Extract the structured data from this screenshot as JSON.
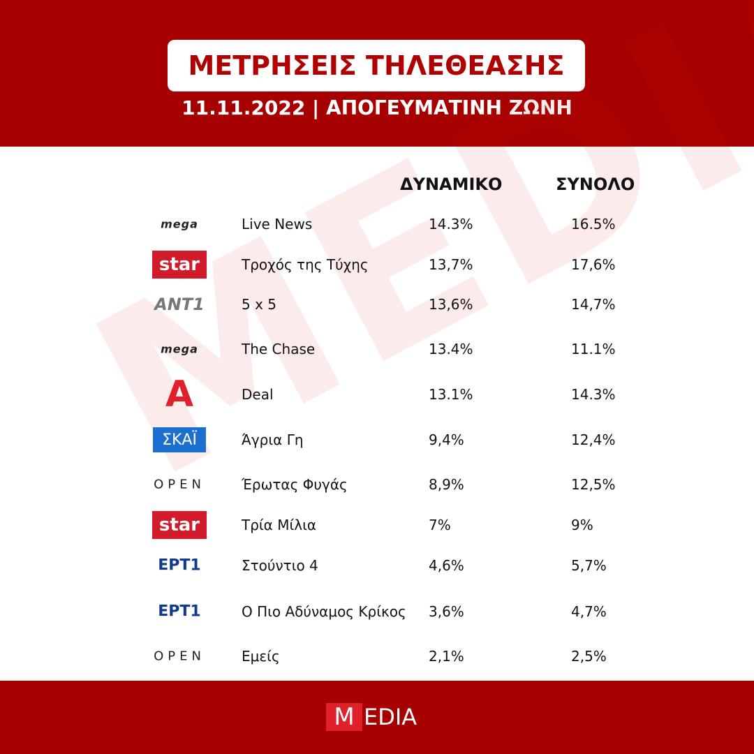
{
  "header": {
    "title": "ΜΕΤΡΗΣΕΙΣ ΤΗΛΕΘΕΑΣΗΣ",
    "subtitle": "11.11.2022 | ΑΠΟΓΕΥΜΑΤΙΝΗ ΖΩΝΗ"
  },
  "watermark": "MEDIA",
  "table": {
    "columns": [
      "ΔΥΝΑΜΙΚΟ",
      "ΣΥΝΟΛΟ"
    ],
    "rows": [
      {
        "logo": "mega",
        "show": "Live News",
        "dynamic": "14.3%",
        "total": "16.5%"
      },
      {
        "logo": "star",
        "show": "Τροχός της Τύχης",
        "dynamic": "13,7%",
        "total": "17,6%"
      },
      {
        "logo": "ANT1",
        "show": "5 x 5",
        "dynamic": "13,6%",
        "total": "14,7%"
      },
      {
        "logo": "mega",
        "show": "The Chase",
        "dynamic": "13.4%",
        "total": "11.1%"
      },
      {
        "logo": "Α",
        "show": "Deal",
        "dynamic": "13.1%",
        "total": "14.3%"
      },
      {
        "logo": "ΣΚΑΪ",
        "show": "Άγρια Γη",
        "dynamic": "9,4%",
        "total": "12,4%"
      },
      {
        "logo": "OPEN",
        "show": "Έρωτας Φυγάς",
        "dynamic": "8,9%",
        "total": "12,5%"
      },
      {
        "logo": "star",
        "show": "Τρία Μίλια",
        "dynamic": "7%",
        "total": "9%"
      },
      {
        "logo": "ΕΡΤ1",
        "show": "Στούντιο 4",
        "dynamic": "4,6%",
        "total": "5,7%"
      },
      {
        "logo": "ΕΡΤ1",
        "show": "Ο Πιο Αδύναμος Κρίκος",
        "dynamic": "3,6%",
        "total": "4,7%"
      },
      {
        "logo": "OPEN",
        "show": "Εμείς",
        "dynamic": "2,1%",
        "total": "2,5%"
      }
    ]
  },
  "footer": {
    "logo_initial": "M",
    "logo_rest": "EDIA"
  }
}
